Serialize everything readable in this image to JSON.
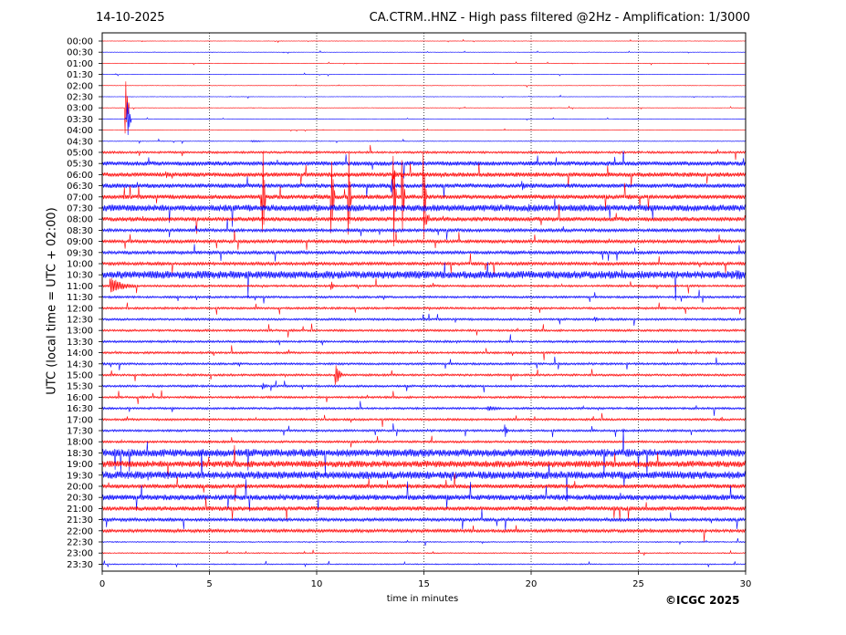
{
  "header": {
    "date": "14-10-2025",
    "station_title": "CA.CTRM..HNZ - High pass filtered @2Hz - Amplification: 1/3000"
  },
  "footer": {
    "copyright": "©ICGC 2025"
  },
  "colors": {
    "trace_a": "#ff0000",
    "trace_b": "#0000ff",
    "grid": "#000000",
    "background": "#ffffff"
  },
  "chart_data": {
    "type": "line",
    "subtype": "helicorder",
    "title": "CA.CTRM..HNZ - High pass filtered @2Hz - Amplification: 1/3000",
    "xlabel": "time in minutes",
    "ylabel": "UTC (local time = UTC + 02:00)",
    "xlim": [
      0,
      30
    ],
    "x_ticks": [
      "0",
      "5",
      "10",
      "15",
      "20",
      "25",
      "30"
    ],
    "x_tick_values": [
      0,
      5,
      10,
      15,
      20,
      25,
      30
    ],
    "x_grid_lines": [
      5,
      10,
      15,
      20,
      25
    ],
    "grid": "vertical dotted at every 5 minutes",
    "trace_colors_alternate": [
      "red",
      "blue"
    ],
    "rows": [
      "00:00",
      "00:30",
      "01:00",
      "01:30",
      "02:00",
      "02:30",
      "03:00",
      "03:30",
      "04:00",
      "04:30",
      "05:00",
      "05:30",
      "06:00",
      "06:30",
      "07:00",
      "07:30",
      "08:00",
      "08:30",
      "09:00",
      "09:30",
      "10:00",
      "10:30",
      "11:00",
      "11:30",
      "12:00",
      "12:30",
      "13:00",
      "13:30",
      "14:00",
      "14:30",
      "15:00",
      "15:30",
      "16:00",
      "16:30",
      "17:00",
      "17:30",
      "18:00",
      "18:30",
      "19:00",
      "19:30",
      "20:00",
      "20:30",
      "21:00",
      "21:30",
      "22:00",
      "22:30",
      "23:00",
      "23:30"
    ],
    "noise_level": [
      0.02,
      0.02,
      0.02,
      0.02,
      0.02,
      0.02,
      0.02,
      0.02,
      0.02,
      0.03,
      0.1,
      0.2,
      0.2,
      0.2,
      0.2,
      0.3,
      0.2,
      0.15,
      0.15,
      0.15,
      0.15,
      0.35,
      0.1,
      0.1,
      0.1,
      0.1,
      0.1,
      0.1,
      0.1,
      0.1,
      0.1,
      0.1,
      0.1,
      0.1,
      0.1,
      0.1,
      0.1,
      0.35,
      0.3,
      0.35,
      0.2,
      0.25,
      0.2,
      0.15,
      0.15,
      0.05,
      0.05,
      0.05
    ],
    "events": [
      {
        "row": "03:00",
        "minute": 1.1,
        "amplitude_rows": 2.4,
        "duration_min": 0.15
      },
      {
        "row": "03:30",
        "minute": 1.2,
        "amplitude_rows": 1.8,
        "duration_min": 0.15
      },
      {
        "row": "04:30",
        "minute": 7.0,
        "amplitude_rows": 0.1,
        "duration_min": 1.0
      },
      {
        "row": "06:00",
        "minute": 3.0,
        "amplitude_rows": 0.35,
        "duration_min": 0.3
      },
      {
        "row": "06:00",
        "minute": 13.6,
        "amplitude_rows": 0.5,
        "duration_min": 0.3
      },
      {
        "row": "06:30",
        "minute": 13.5,
        "amplitude_rows": 0.6,
        "duration_min": 0.3
      },
      {
        "row": "06:30",
        "minute": 19.6,
        "amplitude_rows": 0.5,
        "duration_min": 0.2
      },
      {
        "row": "07:00",
        "minute": 7.5,
        "amplitude_rows": 4.5,
        "duration_min": 0.12
      },
      {
        "row": "07:00",
        "minute": 10.7,
        "amplitude_rows": 4.5,
        "duration_min": 0.14
      },
      {
        "row": "07:00",
        "minute": 11.5,
        "amplitude_rows": 4.5,
        "duration_min": 0.12
      },
      {
        "row": "07:00",
        "minute": 13.6,
        "amplitude_rows": 4.5,
        "duration_min": 0.12
      },
      {
        "row": "07:00",
        "minute": 14.0,
        "amplitude_rows": 4.5,
        "duration_min": 0.12
      },
      {
        "row": "07:00",
        "minute": 15.0,
        "amplitude_rows": 4.0,
        "duration_min": 0.12
      },
      {
        "row": "07:30",
        "minute": 4.3,
        "amplitude_rows": 0.3,
        "duration_min": 0.3
      },
      {
        "row": "07:30",
        "minute": 19.9,
        "amplitude_rows": 0.4,
        "duration_min": 0.2
      },
      {
        "row": "08:00",
        "minute": 15.1,
        "amplitude_rows": 0.7,
        "duration_min": 0.2
      },
      {
        "row": "08:30",
        "minute": 21.2,
        "amplitude_rows": 0.2,
        "duration_min": 0.3
      },
      {
        "row": "10:30",
        "minute": 6.2,
        "amplitude_rows": 0.35,
        "duration_min": 1.5
      },
      {
        "row": "10:30",
        "minute": 29.6,
        "amplitude_rows": 0.6,
        "duration_min": 0.8
      },
      {
        "row": "11:00",
        "minute": 0.4,
        "amplitude_rows": 0.8,
        "duration_min": 1.2
      },
      {
        "row": "11:00",
        "minute": 10.7,
        "amplitude_rows": 0.4,
        "duration_min": 0.15
      },
      {
        "row": "12:30",
        "minute": 23.0,
        "amplitude_rows": 0.3,
        "duration_min": 0.2
      },
      {
        "row": "15:00",
        "minute": 10.9,
        "amplitude_rows": 1.2,
        "duration_min": 0.3
      },
      {
        "row": "15:30",
        "minute": 7.5,
        "amplitude_rows": 0.3,
        "duration_min": 0.4
      },
      {
        "row": "16:30",
        "minute": 18.0,
        "amplitude_rows": 0.25,
        "duration_min": 1.0
      },
      {
        "row": "17:30",
        "minute": 18.8,
        "amplitude_rows": 0.6,
        "duration_min": 0.15
      },
      {
        "row": "18:30",
        "minute": 3.4,
        "amplitude_rows": 0.3,
        "duration_min": 0.3
      }
    ]
  }
}
